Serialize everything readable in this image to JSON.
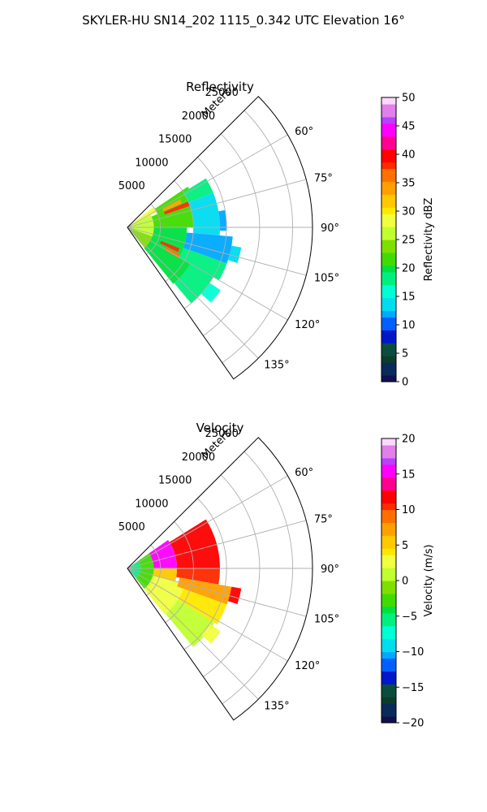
{
  "title": "SKYLER-HU  SN14_202  1115_0.342 UTC Elevation 16°",
  "colors": {
    "grid": "#b0b0b0",
    "frame": "#000000"
  },
  "chart_data": [
    {
      "type": "heatmap",
      "subtype": "polar-sector",
      "title": "Reflectivity",
      "rlabel": "Meters",
      "range_ticks": [
        "5000",
        "10000",
        "15000",
        "20000",
        "25000"
      ],
      "range_max": 28000,
      "azimuth_range": [
        45,
        145
      ],
      "azimuth_ticks": [
        "60°",
        "75°",
        "90°",
        "105°",
        "120°",
        "135°"
      ],
      "colorbar": {
        "label": "Reflectivity dBZ",
        "min": 0,
        "max": 50,
        "ticks": [
          "0",
          "5",
          "10",
          "15",
          "20",
          "25",
          "30",
          "35",
          "40",
          "45",
          "50"
        ]
      },
      "field": [
        {
          "az": [
            52,
            62
          ],
          "r": [
            0,
            5000
          ],
          "v": 28
        },
        {
          "az": [
            62,
            110
          ],
          "r": [
            0,
            4000
          ],
          "v": 26
        },
        {
          "az": [
            110,
            140
          ],
          "r": [
            0,
            4000
          ],
          "v": 23
        },
        {
          "az": [
            56,
            66
          ],
          "r": [
            5000,
            11000
          ],
          "v": 21
        },
        {
          "az": [
            66,
            90
          ],
          "r": [
            4000,
            10000
          ],
          "v": 21
        },
        {
          "az": [
            90,
            110
          ],
          "r": [
            4000,
            9000
          ],
          "v": 20
        },
        {
          "az": [
            110,
            141
          ],
          "r": [
            4000,
            11000
          ],
          "v": 19
        },
        {
          "az": [
            62,
            66
          ],
          "r": [
            6000,
            9000
          ],
          "v": 34
        },
        {
          "az": [
            67,
            71
          ],
          "r": [
            6000,
            10000
          ],
          "v": 37
        },
        {
          "az": [
            112,
            116
          ],
          "r": [
            5500,
            8500
          ],
          "v": 37
        },
        {
          "az": [
            117,
            121
          ],
          "r": [
            6500,
            9000
          ],
          "v": 35
        },
        {
          "az": [
            58,
            68
          ],
          "r": [
            10000,
            14000
          ],
          "v": 17
        },
        {
          "az": [
            68,
            95
          ],
          "r": [
            10000,
            14000
          ],
          "v": 13
        },
        {
          "az": [
            95,
            110
          ],
          "r": [
            9000,
            16000
          ],
          "v": 11
        },
        {
          "az": [
            110,
            120
          ],
          "r": [
            9000,
            16000
          ],
          "v": 17
        },
        {
          "az": [
            120,
            140
          ],
          "r": [
            11000,
            15000
          ],
          "v": 18
        },
        {
          "az": [
            124,
            132
          ],
          "r": [
            15000,
            17000
          ],
          "v": 16
        },
        {
          "az": [
            100,
            108
          ],
          "r": [
            16000,
            17500
          ],
          "v": 14
        },
        {
          "az": [
            80,
            92
          ],
          "r": [
            14000,
            15000
          ],
          "v": 12
        }
      ]
    },
    {
      "type": "heatmap",
      "subtype": "polar-sector",
      "title": "Velocity",
      "rlabel": "Meters",
      "range_ticks": [
        "5000",
        "10000",
        "15000",
        "20000",
        "25000"
      ],
      "range_max": 28000,
      "azimuth_range": [
        45,
        145
      ],
      "azimuth_ticks": [
        "60°",
        "75°",
        "90°",
        "105°",
        "120°",
        "135°"
      ],
      "colorbar": {
        "label": "Velocity (m/s)",
        "min": -20,
        "max": 20,
        "ticks": [
          "−20",
          "−15",
          "−10",
          "−5",
          "0",
          "5",
          "10",
          "15",
          "20"
        ]
      },
      "field": [
        {
          "az": [
            55,
            140
          ],
          "r": [
            0,
            2000
          ],
          "v": -6
        },
        {
          "az": [
            55,
            140
          ],
          "r": [
            2000,
            4000
          ],
          "v": -3
        },
        {
          "az": [
            55,
            90
          ],
          "r": [
            4000,
            7500
          ],
          "v": 15
        },
        {
          "az": [
            90,
            105
          ],
          "r": [
            4000,
            7500
          ],
          "v": 5
        },
        {
          "az": [
            105,
            141
          ],
          "r": [
            4000,
            9000
          ],
          "v": 2
        },
        {
          "az": [
            58,
            90
          ],
          "r": [
            7500,
            14000
          ],
          "v": 12
        },
        {
          "az": [
            90,
            100
          ],
          "r": [
            7500,
            14000
          ],
          "v": 10
        },
        {
          "az": [
            100,
            110
          ],
          "r": [
            8000,
            16000
          ],
          "v": 7
        },
        {
          "az": [
            110,
            122
          ],
          "r": [
            9000,
            16000
          ],
          "v": 4
        },
        {
          "az": [
            122,
            140
          ],
          "r": [
            9000,
            15500
          ],
          "v": 1
        },
        {
          "az": [
            100,
            108
          ],
          "r": [
            16000,
            17500
          ],
          "v": 12
        },
        {
          "az": [
            124,
            132
          ],
          "r": [
            15000,
            17000
          ],
          "v": 3
        }
      ]
    }
  ]
}
